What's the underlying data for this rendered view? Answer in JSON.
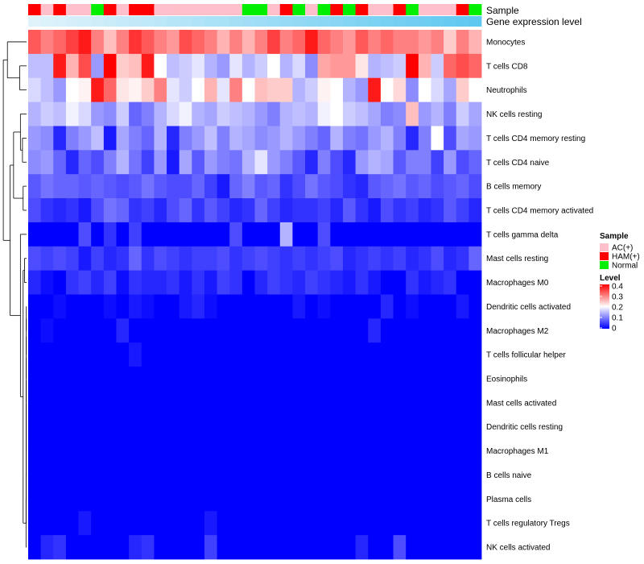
{
  "chart_data": {
    "type": "heatmap",
    "column_annotations": [
      {
        "name": "Sample",
        "values": [
          "HAM(+)",
          "AC(+)",
          "HAM(+)",
          "AC(+)",
          "AC(+)",
          "Normal",
          "HAM(+)",
          "AC(+)",
          "HAM(+)",
          "HAM(+)",
          "AC(+)",
          "AC(+)",
          "AC(+)",
          "AC(+)",
          "AC(+)",
          "AC(+)",
          "AC(+)",
          "Normal",
          "Normal",
          "AC(+)",
          "HAM(+)",
          "Normal",
          "AC(+)",
          "Normal",
          "HAM(+)",
          "Normal",
          "HAM(+)",
          "AC(+)",
          "AC(+)",
          "HAM(+)",
          "Normal",
          "AC(+)",
          "AC(+)",
          "AC(+)",
          "HAM(+)",
          "Normal"
        ]
      },
      {
        "name": "Gene expression level",
        "style": "gradient"
      }
    ],
    "rows": [
      "Monocytes",
      "T cells CD8",
      "Neutrophils",
      "NK cells resting",
      "T cells CD4 memory resting",
      "T cells CD4 naive",
      "B cells memory",
      "T cells CD4 memory activated",
      "T cells gamma delta",
      "Mast cells resting",
      "Macrophages M0",
      "Dendritic cells activated",
      "Macrophages M2",
      "T cells follicular helper",
      "Eosinophils",
      "Mast cells activated",
      "Dendritic cells resting",
      "Macrophages M1",
      "B cells naive",
      "Plasma cells",
      "T cells regulatory  Tregs",
      "NK cells activated"
    ],
    "values": [
      [
        0.33,
        0.3,
        0.32,
        0.35,
        0.38,
        0.3,
        0.25,
        0.3,
        0.36,
        0.33,
        0.3,
        0.28,
        0.34,
        0.32,
        0.3,
        0.26,
        0.3,
        0.26,
        0.3,
        0.35,
        0.3,
        0.32,
        0.38,
        0.32,
        0.3,
        0.28,
        0.33,
        0.3,
        0.32,
        0.3,
        0.3,
        0.28,
        0.3,
        0.24,
        0.3,
        0.26
      ],
      [
        0.15,
        0.15,
        0.38,
        0.26,
        0.34,
        0.12,
        0.4,
        0.24,
        0.25,
        0.38,
        0.2,
        0.15,
        0.16,
        0.18,
        0.14,
        0.12,
        0.18,
        0.14,
        0.16,
        0.2,
        0.14,
        0.17,
        0.11,
        0.27,
        0.28,
        0.28,
        0.22,
        0.14,
        0.15,
        0.16,
        0.4,
        0.26,
        0.16,
        0.32,
        0.34,
        0.32
      ],
      [
        0.17,
        0.15,
        0.12,
        0.2,
        0.21,
        0.38,
        0.32,
        0.22,
        0.21,
        0.24,
        0.3,
        0.18,
        0.16,
        0.2,
        0.26,
        0.18,
        0.3,
        0.2,
        0.25,
        0.24,
        0.24,
        0.14,
        0.16,
        0.21,
        0.2,
        0.14,
        0.12,
        0.38,
        0.2,
        0.23,
        0.11,
        0.2,
        0.17,
        0.13,
        0.24,
        0.2
      ],
      [
        0.14,
        0.16,
        0.15,
        0.19,
        0.17,
        0.12,
        0.11,
        0.16,
        0.08,
        0.1,
        0.14,
        0.17,
        0.19,
        0.14,
        0.13,
        0.16,
        0.15,
        0.14,
        0.12,
        0.1,
        0.14,
        0.15,
        0.14,
        0.19,
        0.2,
        0.16,
        0.15,
        0.13,
        0.1,
        0.11,
        0.25,
        0.12,
        0.14,
        0.1,
        0.16,
        0.13
      ],
      [
        0.12,
        0.11,
        0.03,
        0.1,
        0.12,
        0.15,
        0.02,
        0.13,
        0.1,
        0.08,
        0.14,
        0.03,
        0.1,
        0.12,
        0.15,
        0.1,
        0.14,
        0.13,
        0.11,
        0.12,
        0.14,
        0.12,
        0.1,
        0.08,
        0.14,
        0.1,
        0.09,
        0.12,
        0.14,
        0.1,
        0.03,
        0.1,
        0.2,
        0.06,
        0.13,
        0.12
      ],
      [
        0.11,
        0.12,
        0.08,
        0.03,
        0.08,
        0.06,
        0.1,
        0.14,
        0.09,
        0.05,
        0.12,
        0.02,
        0.13,
        0.07,
        0.12,
        0.1,
        0.09,
        0.14,
        0.18,
        0.12,
        0.1,
        0.07,
        0.03,
        0.1,
        0.06,
        0.03,
        0.12,
        0.14,
        0.13,
        0.07,
        0.1,
        0.1,
        0.05,
        0.12,
        0.06,
        0.08
      ],
      [
        0.07,
        0.09,
        0.08,
        0.08,
        0.07,
        0.08,
        0.07,
        0.06,
        0.07,
        0.09,
        0.07,
        0.06,
        0.06,
        0.08,
        0.05,
        0.02,
        0.08,
        0.1,
        0.07,
        0.08,
        0.04,
        0.06,
        0.09,
        0.07,
        0.06,
        0.04,
        0.03,
        0.07,
        0.08,
        0.09,
        0.07,
        0.08,
        0.06,
        0.07,
        0.08,
        0.06
      ],
      [
        0.06,
        0.04,
        0.03,
        0.04,
        0.02,
        0.06,
        0.09,
        0.08,
        0.04,
        0.05,
        0.03,
        0.06,
        0.08,
        0.04,
        0.07,
        0.05,
        0.03,
        0.04,
        0.08,
        0.05,
        0.03,
        0.04,
        0.04,
        0.05,
        0.03,
        0.07,
        0.04,
        0.02,
        0.06,
        0.04,
        0.05,
        0.03,
        0.04,
        0.07,
        0.05,
        0.03
      ],
      [
        0.0,
        0.0,
        0.0,
        0.0,
        0.06,
        0.0,
        0.04,
        0.0,
        0.05,
        0.0,
        0.0,
        0.0,
        0.0,
        0.0,
        0.0,
        0.0,
        0.06,
        0.0,
        0.0,
        0.0,
        0.14,
        0.0,
        0.0,
        0.06,
        0.0,
        0.0,
        0.0,
        0.0,
        0.0,
        0.0,
        0.0,
        0.0,
        0.0,
        0.0,
        0.0,
        0.0
      ],
      [
        0.06,
        0.05,
        0.06,
        0.05,
        0.02,
        0.05,
        0.03,
        0.04,
        0.08,
        0.04,
        0.06,
        0.05,
        0.04,
        0.05,
        0.05,
        0.06,
        0.04,
        0.05,
        0.06,
        0.05,
        0.04,
        0.05,
        0.04,
        0.05,
        0.06,
        0.03,
        0.04,
        0.05,
        0.04,
        0.05,
        0.03,
        0.04,
        0.06,
        0.03,
        0.04,
        0.08
      ],
      [
        0.03,
        0.01,
        0.0,
        0.04,
        0.05,
        0.03,
        0.05,
        0.01,
        0.04,
        0.03,
        0.03,
        0.04,
        0.02,
        0.04,
        0.02,
        0.05,
        0.04,
        0.0,
        0.03,
        0.05,
        0.04,
        0.03,
        0.05,
        0.04,
        0.03,
        0.02,
        0.04,
        0.02,
        0.0,
        0.0,
        0.04,
        0.02,
        0.03,
        0.04,
        0.0,
        0.0
      ],
      [
        0.0,
        0.0,
        0.01,
        0.0,
        0.0,
        0.0,
        0.01,
        0.0,
        0.02,
        0.01,
        0.0,
        0.0,
        0.02,
        0.03,
        0.01,
        0.0,
        0.0,
        0.0,
        0.0,
        0.0,
        0.0,
        0.02,
        0.0,
        0.01,
        0.0,
        0.0,
        0.0,
        0.0,
        0.03,
        0.0,
        0.01,
        0.0,
        0.0,
        0.0,
        0.02,
        0.0
      ],
      [
        0.0,
        0.01,
        0.0,
        0.0,
        0.0,
        0.0,
        0.0,
        0.03,
        0.0,
        0.0,
        0.0,
        0.0,
        0.0,
        0.0,
        0.0,
        0.0,
        0.0,
        0.0,
        0.0,
        0.0,
        0.0,
        0.0,
        0.0,
        0.0,
        0.0,
        0.0,
        0.0,
        0.03,
        0.0,
        0.0,
        0.0,
        0.0,
        0.0,
        0.0,
        0.0,
        0.0
      ],
      [
        0.0,
        0.0,
        0.0,
        0.0,
        0.0,
        0.0,
        0.0,
        0.0,
        0.02,
        0.0,
        0.0,
        0.0,
        0.0,
        0.0,
        0.0,
        0.0,
        0.0,
        0.0,
        0.0,
        0.0,
        0.0,
        0.0,
        0.0,
        0.0,
        0.0,
        0.0,
        0.0,
        0.0,
        0.0,
        0.0,
        0.0,
        0.0,
        0.0,
        0.0,
        0.0,
        0.0
      ],
      [
        0.0,
        0.0,
        0.0,
        0.0,
        0.0,
        0.0,
        0.0,
        0.0,
        0.0,
        0.0,
        0.0,
        0.0,
        0.0,
        0.0,
        0.0,
        0.0,
        0.0,
        0.0,
        0.0,
        0.0,
        0.0,
        0.0,
        0.0,
        0.0,
        0.0,
        0.0,
        0.0,
        0.0,
        0.0,
        0.0,
        0.0,
        0.0,
        0.0,
        0.0,
        0.0,
        0.0
      ],
      [
        0.0,
        0.0,
        0.0,
        0.0,
        0.0,
        0.0,
        0.0,
        0.0,
        0.0,
        0.0,
        0.0,
        0.0,
        0.0,
        0.0,
        0.0,
        0.0,
        0.0,
        0.0,
        0.0,
        0.0,
        0.0,
        0.0,
        0.0,
        0.0,
        0.0,
        0.0,
        0.0,
        0.0,
        0.0,
        0.0,
        0.0,
        0.0,
        0.0,
        0.0,
        0.0,
        0.0
      ],
      [
        0.0,
        0.0,
        0.0,
        0.0,
        0.0,
        0.0,
        0.0,
        0.0,
        0.0,
        0.0,
        0.0,
        0.0,
        0.0,
        0.0,
        0.0,
        0.0,
        0.0,
        0.0,
        0.0,
        0.0,
        0.0,
        0.0,
        0.0,
        0.0,
        0.0,
        0.0,
        0.0,
        0.0,
        0.0,
        0.0,
        0.0,
        0.0,
        0.0,
        0.0,
        0.0,
        0.0
      ],
      [
        0.0,
        0.0,
        0.0,
        0.0,
        0.0,
        0.0,
        0.0,
        0.0,
        0.0,
        0.0,
        0.0,
        0.0,
        0.0,
        0.0,
        0.0,
        0.0,
        0.0,
        0.0,
        0.0,
        0.0,
        0.0,
        0.0,
        0.0,
        0.0,
        0.0,
        0.0,
        0.0,
        0.0,
        0.0,
        0.0,
        0.0,
        0.0,
        0.0,
        0.0,
        0.0,
        0.0
      ],
      [
        0.0,
        0.0,
        0.0,
        0.0,
        0.0,
        0.0,
        0.0,
        0.0,
        0.0,
        0.0,
        0.0,
        0.0,
        0.0,
        0.0,
        0.0,
        0.0,
        0.0,
        0.0,
        0.0,
        0.0,
        0.0,
        0.0,
        0.0,
        0.0,
        0.0,
        0.0,
        0.0,
        0.0,
        0.0,
        0.0,
        0.0,
        0.0,
        0.0,
        0.0,
        0.0,
        0.0
      ],
      [
        0.0,
        0.0,
        0.0,
        0.0,
        0.0,
        0.0,
        0.0,
        0.0,
        0.0,
        0.0,
        0.0,
        0.0,
        0.0,
        0.0,
        0.0,
        0.0,
        0.0,
        0.0,
        0.0,
        0.0,
        0.0,
        0.0,
        0.0,
        0.0,
        0.0,
        0.0,
        0.0,
        0.0,
        0.0,
        0.0,
        0.0,
        0.0,
        0.0,
        0.0,
        0.0,
        0.0
      ],
      [
        0.0,
        0.0,
        0.0,
        0.0,
        0.02,
        0.0,
        0.0,
        0.0,
        0.0,
        0.0,
        0.0,
        0.0,
        0.0,
        0.0,
        0.02,
        0.0,
        0.0,
        0.0,
        0.0,
        0.0,
        0.0,
        0.0,
        0.0,
        0.0,
        0.0,
        0.0,
        0.0,
        0.0,
        0.0,
        0.0,
        0.0,
        0.0,
        0.0,
        0.0,
        0.0,
        0.0
      ],
      [
        0.0,
        0.03,
        0.04,
        0.0,
        0.0,
        0.0,
        0.0,
        0.0,
        0.03,
        0.04,
        0.0,
        0.0,
        0.0,
        0.0,
        0.05,
        0.0,
        0.0,
        0.0,
        0.0,
        0.0,
        0.0,
        0.0,
        0.0,
        0.0,
        0.0,
        0.0,
        0.03,
        0.0,
        0.0,
        0.06,
        0.0,
        0.0,
        0.0,
        0.0,
        0.0,
        0.0
      ]
    ],
    "legend": {
      "sample_title": "Sample",
      "sample_items": [
        {
          "label": "AC(+)",
          "color": "#ffc0cb"
        },
        {
          "label": "HAM(+)",
          "color": "#ff0000"
        },
        {
          "label": "Normal",
          "color": "#00ee00"
        }
      ],
      "level_title": "Level",
      "level_ticks": [
        "0.4",
        "0.3",
        "0.2",
        "0.1",
        "0"
      ],
      "level_range": [
        0,
        0.4
      ]
    },
    "colors": {
      "low": "#0000ff",
      "mid": "#ffffff",
      "high": "#ff0000",
      "gene_light": "#e0f3fb",
      "gene_dark": "#5fc8f0"
    }
  }
}
